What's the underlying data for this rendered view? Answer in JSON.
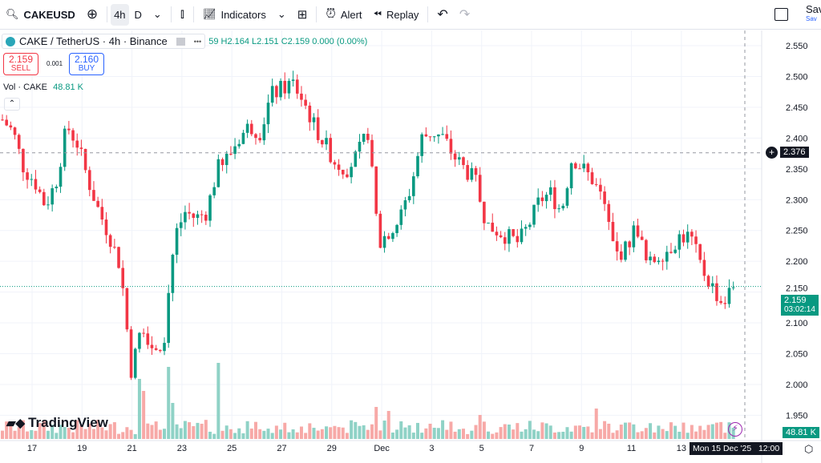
{
  "toolbar": {
    "symbol": "CAKEUSD",
    "tf_active": "4h",
    "tf_other": "D",
    "indicators": "Indicators",
    "alert": "Alert",
    "replay": "Replay",
    "save": "Sav",
    "save_sub": "Sav"
  },
  "legend": {
    "title": "CAKE / TetherUS · 4h · Binance",
    "more": "•••",
    "ohlc": "59 H2.164 L2.151 C2.159 0.000 (0.00%)"
  },
  "trade": {
    "sell_price": "2.159",
    "sell_label": "SELL",
    "spread": "0.001",
    "buy_price": "2.160",
    "buy_label": "BUY"
  },
  "volume": {
    "label": "Vol · CAKE",
    "value": "48.81 K"
  },
  "crosshair": {
    "price": "2.376",
    "time": "Mon 15 Dec '25   12:00"
  },
  "last": {
    "price": "2.159",
    "countdown": "03:02:14"
  },
  "logo": "TradingView",
  "colors": {
    "up": "#089981",
    "down": "#f23645",
    "upVol": "#8fd2c6",
    "downVol": "#f7a9a7"
  },
  "chart_data": {
    "type": "candlestick",
    "price_ticks": [
      "2.550",
      "2.500",
      "2.450",
      "2.400",
      "2.350",
      "2.300",
      "2.250",
      "2.200",
      "2.150",
      "2.100",
      "2.050",
      "2.000",
      "1.950"
    ],
    "ylim": [
      1.935,
      2.575
    ],
    "date_ticks": [
      "17",
      "19",
      "21",
      "23",
      "25",
      "27",
      "29",
      "Dec",
      "3",
      "5",
      "7",
      "9",
      "11",
      "13"
    ],
    "price_path_approx": [
      2.43,
      2.41,
      2.35,
      2.33,
      2.29,
      2.33,
      2.42,
      2.39,
      2.33,
      2.28,
      2.24,
      2.19,
      2.02,
      2.1,
      2.06,
      2.07,
      2.24,
      2.28,
      2.27,
      2.28,
      2.35,
      2.37,
      2.4,
      2.42,
      2.41,
      2.47,
      2.48,
      2.49,
      2.46,
      2.42,
      2.39,
      2.36,
      2.35,
      2.37,
      2.41,
      2.23,
      2.25,
      2.27,
      2.32,
      2.4,
      2.41,
      2.4,
      2.37,
      2.35,
      2.33,
      2.26,
      2.25,
      2.24,
      2.23,
      2.26,
      2.3,
      2.31,
      2.28,
      2.37,
      2.35,
      2.33,
      2.29,
      2.21,
      2.22,
      2.26,
      2.19,
      2.21,
      2.22,
      2.24,
      2.24,
      2.19,
      2.16,
      2.13,
      2.16
    ]
  }
}
